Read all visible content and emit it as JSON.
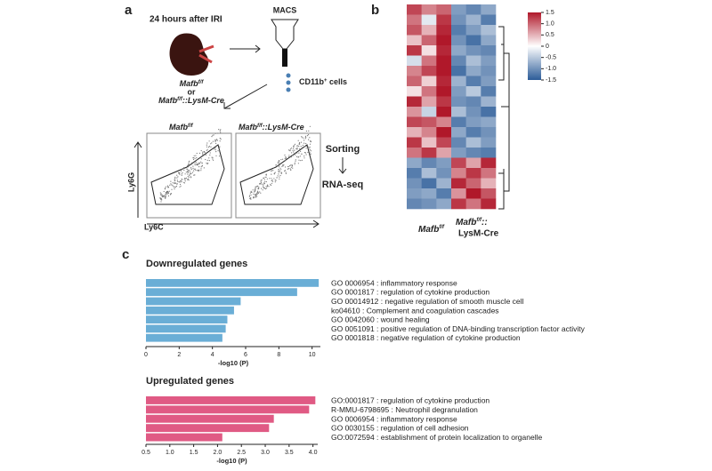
{
  "panel_a": {
    "label": "a",
    "timepoint": "24 hours after IRI",
    "macs": "MACS",
    "genotype_1": {
      "gene": "Mafb",
      "sup": "f/f"
    },
    "or": "or",
    "genotype_2": {
      "gene": "Mafb",
      "sup": "f/f",
      "suffix": "::LysM-Cre"
    },
    "cells": {
      "text": "CD11b",
      "sup": "+",
      "suffix": " cells"
    },
    "plot_titles": [
      {
        "gene": "Mafb",
        "sup": "f/f"
      },
      {
        "gene": "Mafb",
        "sup": "f/f",
        "suffix": "::LysM-Cre"
      }
    ],
    "y_axis": "Ly6G",
    "x_axis": "Ly6C",
    "steps": [
      "Sorting",
      "RNA-seq"
    ]
  },
  "panel_b": {
    "label": "b",
    "heatmap": {
      "values": [
        [
          1.2,
          0.8,
          1.0,
          -0.9,
          -1.1,
          -0.8
        ],
        [
          0.9,
          -0.2,
          1.3,
          -1.0,
          -0.7,
          -1.2
        ],
        [
          1.1,
          0.5,
          1.4,
          -1.2,
          -0.9,
          -0.6
        ],
        [
          0.4,
          1.0,
          1.5,
          -1.0,
          -1.3,
          -0.8
        ],
        [
          1.3,
          0.2,
          1.4,
          -0.8,
          -1.0,
          -1.1
        ],
        [
          -0.3,
          0.9,
          1.5,
          -1.1,
          -0.6,
          -0.9
        ],
        [
          0.8,
          1.2,
          1.5,
          -1.3,
          -0.8,
          -1.0
        ],
        [
          1.0,
          0.3,
          1.4,
          -0.7,
          -1.2,
          -0.9
        ],
        [
          0.2,
          0.9,
          1.5,
          -0.9,
          -0.5,
          -1.2
        ],
        [
          1.4,
          0.6,
          1.3,
          -1.0,
          -1.1,
          -0.7
        ],
        [
          0.7,
          -0.4,
          1.5,
          -0.6,
          -1.0,
          -1.3
        ],
        [
          1.2,
          1.1,
          0.8,
          -1.2,
          -0.9,
          -0.8
        ],
        [
          0.5,
          0.8,
          1.5,
          -0.8,
          -1.2,
          -1.0
        ],
        [
          1.3,
          0.4,
          1.2,
          -1.1,
          -0.6,
          -0.9
        ],
        [
          0.9,
          1.3,
          0.6,
          -0.9,
          -1.1,
          -1.2
        ],
        [
          -0.8,
          -1.1,
          -0.9,
          1.2,
          0.6,
          1.4
        ],
        [
          -1.2,
          -0.6,
          -1.0,
          0.8,
          1.3,
          0.9
        ],
        [
          -1.0,
          -1.3,
          -0.7,
          1.4,
          1.0,
          0.5
        ],
        [
          -0.9,
          -0.8,
          -1.2,
          0.7,
          1.5,
          1.1
        ],
        [
          -1.1,
          -1.0,
          -0.8,
          1.3,
          0.9,
          1.4
        ]
      ],
      "columns": [
        {
          "gene": "Mafb",
          "sup": "f/f"
        },
        {
          "gene": "Mafb",
          "sup": "f/f",
          "suffix": "::",
          "line2": "LysM-Cre"
        }
      ],
      "colorbar": {
        "lim": [
          -1.5,
          1.5
        ],
        "ticks": [
          {
            "value": 1.5,
            "label": "1.5"
          },
          {
            "value": 1.0,
            "label": "1.0"
          },
          {
            "value": 0.5,
            "label": "0.5"
          },
          0,
          {
            "value": -0.5,
            "label": "-0.5"
          },
          {
            "value": -1.0,
            "label": "-1.0"
          },
          {
            "value": -1.5,
            "label": "-1.5"
          }
        ]
      }
    }
  },
  "panel_c": {
    "label": "c",
    "charts": [
      {
        "type": "bar",
        "title": "Downregulated genes",
        "xlabel": "-log10 (P)",
        "color": "#6aaed6",
        "categories": [
          "GO 0006954 : inflammatory response",
          "GO 0001817 : regulation of cytokine production",
          "GO 00014912 : negative regulation of smooth muscle cell",
          "ko04610 : Complement and coagulation cascades",
          "GO 0042060 : wound healing",
          "GO 0051091 : positive regulation of DNA-binding transcription factor activity",
          "GO 0001818 : negative regulation of cytokine production"
        ],
        "values": [
          10.4,
          9.1,
          5.7,
          5.3,
          4.9,
          4.8,
          4.6
        ],
        "xlim": [
          0,
          10.5
        ],
        "xticks": [
          0,
          2,
          4,
          6,
          8,
          10
        ]
      },
      {
        "type": "bar",
        "title": "Upregulated genes",
        "xlabel": "-log10 (P)",
        "color": "#e05a84",
        "categories": [
          "GO:0001817 : regulation of cytokine production",
          "R-MMU-6798695 : Neutrophil degranulation",
          "GO 0006954 : inflammatory response",
          "GO 0030155 : regulation of cell adhesion",
          "GO:0072594 : establishment of protein localization to organelle"
        ],
        "values": [
          4.05,
          3.92,
          3.18,
          3.08,
          2.1
        ],
        "xlim": [
          0.5,
          4.1
        ],
        "xticks": [
          {
            "value": 0.5,
            "label": "0.5"
          },
          {
            "value": 1.0,
            "label": "1.0"
          },
          {
            "value": 1.5,
            "label": "1.5"
          },
          {
            "value": 2.0,
            "label": "2.0"
          },
          {
            "value": 2.5,
            "label": "2.5"
          },
          {
            "value": 3.0,
            "label": "3.0"
          },
          {
            "value": 3.5,
            "label": "3.5"
          },
          {
            "value": 4.0,
            "label": "4.0"
          }
        ]
      }
    ]
  }
}
